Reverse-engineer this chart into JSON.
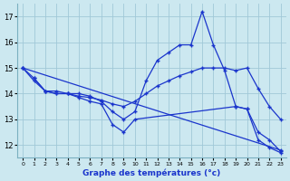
{
  "title": "Graphe des températures (°c)",
  "bg_color": "#cce8f0",
  "grid_color": "#a0c8d8",
  "line_color": "#1a35cc",
  "xlim": [
    -0.5,
    23.5
  ],
  "ylim": [
    11.5,
    17.5
  ],
  "xticks": [
    0,
    1,
    2,
    3,
    4,
    5,
    6,
    7,
    8,
    9,
    10,
    11,
    12,
    13,
    14,
    15,
    16,
    17,
    18,
    19,
    20,
    21,
    22,
    23
  ],
  "yticks": [
    12,
    13,
    14,
    15,
    16,
    17
  ],
  "series": [
    {
      "x": [
        0,
        1,
        2,
        3,
        4,
        5,
        6,
        7,
        8,
        9,
        10,
        11,
        12,
        13,
        14,
        15,
        16,
        17,
        18,
        19,
        20,
        21,
        22,
        23
      ],
      "y": [
        15.0,
        14.6,
        14.1,
        14.1,
        14.0,
        14.0,
        13.9,
        13.7,
        13.3,
        13.0,
        13.3,
        14.5,
        15.3,
        15.6,
        15.9,
        15.9,
        17.2,
        15.9,
        14.9,
        13.5,
        13.4,
        12.2,
        11.9,
        11.7
      ]
    },
    {
      "x": [
        0,
        23
      ],
      "y": [
        15.0,
        11.8
      ]
    },
    {
      "x": [
        0,
        1,
        2,
        3,
        4,
        5,
        6,
        7,
        8,
        9,
        10,
        11,
        12,
        13,
        14,
        15,
        16,
        17,
        18,
        19,
        20,
        21,
        22,
        23
      ],
      "y": [
        15.0,
        14.5,
        14.1,
        14.0,
        14.0,
        13.9,
        13.85,
        13.75,
        13.6,
        13.5,
        13.7,
        14.0,
        14.3,
        14.5,
        14.7,
        14.85,
        15.0,
        15.0,
        15.0,
        14.9,
        15.0,
        14.2,
        13.5,
        13.0
      ]
    },
    {
      "x": [
        1,
        2,
        3,
        4,
        5,
        6,
        7,
        8,
        9,
        10,
        19,
        20,
        21,
        22,
        23
      ],
      "y": [
        14.6,
        14.1,
        14.0,
        14.0,
        13.85,
        13.7,
        13.6,
        12.8,
        12.5,
        13.0,
        13.5,
        13.4,
        12.5,
        12.2,
        11.75
      ]
    }
  ]
}
